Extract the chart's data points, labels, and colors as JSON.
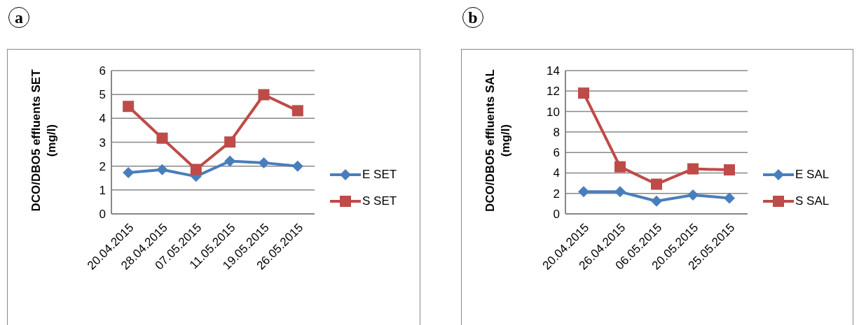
{
  "chart_data": [
    {
      "type": "line",
      "title": "a",
      "ylabel": "DCO/DBO5 effluents SET (mg/l)",
      "categories": [
        "20.04.2015",
        "28.04.2015",
        "07.05.2015",
        "11.05.2015",
        "19.05.2015",
        "26.05.2015"
      ],
      "series": [
        {
          "name": "E SET",
          "color": "#4a7ebb",
          "marker": "diamond",
          "values": [
            1.73,
            1.85,
            1.57,
            2.21,
            2.14,
            2.0
          ]
        },
        {
          "name": "S SET",
          "color": "#be4b48",
          "marker": "square",
          "values": [
            4.5,
            3.17,
            1.86,
            3.01,
            4.99,
            4.32
          ]
        }
      ],
      "ylim": [
        0,
        6
      ],
      "yticks": [
        0,
        1,
        2,
        3,
        4,
        5,
        6
      ],
      "grid": "y",
      "legend": "right"
    },
    {
      "type": "line",
      "title": "b",
      "ylabel": "DCO/DBO5 effluents SAL (mg/l)",
      "categories": [
        "20.04.2015",
        "26.04.2015",
        "06.05.2015",
        "20.05.2015",
        "25.05.2015"
      ],
      "series": [
        {
          "name": "E SAL",
          "color": "#4a7ebb",
          "marker": "diamond",
          "values": [
            2.16,
            2.16,
            1.25,
            1.85,
            1.54
          ]
        },
        {
          "name": "S SAL",
          "color": "#be4b48",
          "marker": "square",
          "values": [
            11.8,
            4.6,
            2.9,
            4.4,
            4.3
          ]
        }
      ],
      "ylim": [
        0,
        14
      ],
      "yticks": [
        0,
        2,
        4,
        6,
        8,
        10,
        12,
        14
      ],
      "grid": "y",
      "legend": "right"
    }
  ]
}
